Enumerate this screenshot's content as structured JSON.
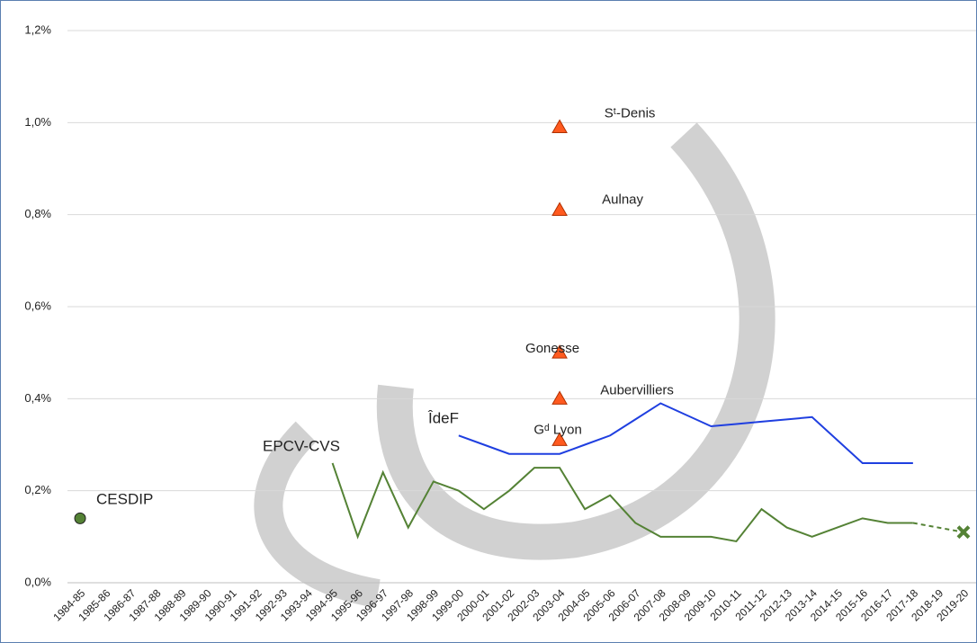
{
  "chart_data": {
    "type": "line",
    "categories": [
      "1984-85",
      "1985-86",
      "1986-87",
      "1987-88",
      "1988-89",
      "1989-90",
      "1990-91",
      "1991-92",
      "1992-93",
      "1993-94",
      "1994-95",
      "1995-96",
      "1996-97",
      "1997-98",
      "1998-99",
      "1999-00",
      "2000-01",
      "2001-02",
      "2002-03",
      "2003-04",
      "2004-05",
      "2005-06",
      "2006-07",
      "2007-08",
      "2008-09",
      "2009-10",
      "2010-11",
      "2011-12",
      "2012-13",
      "2013-14",
      "2014-15",
      "2015-16",
      "2016-17",
      "2017-18",
      "2018-19",
      "2019-20"
    ],
    "ylim": [
      0,
      1.2
    ],
    "yticks": [
      {
        "value": 0,
        "label": "0,0%"
      },
      {
        "value": 0.2,
        "label": "0,2%"
      },
      {
        "value": 0.4,
        "label": "0,4%"
      },
      {
        "value": 0.6,
        "label": "0,6%"
      },
      {
        "value": 0.8,
        "label": "0,8%"
      },
      {
        "value": 1.0,
        "label": "1,0%"
      },
      {
        "value": 1.2,
        "label": "1,2%"
      }
    ],
    "grid": true,
    "series": [
      {
        "name": "CESDIP",
        "color": "#548235",
        "marker": "circle",
        "values": [
          0.14,
          null,
          null,
          null,
          null,
          null,
          null,
          null,
          null,
          null,
          null,
          null,
          null,
          null,
          null,
          null,
          null,
          null,
          null,
          null,
          null,
          null,
          null,
          null,
          null,
          null,
          null,
          null,
          null,
          null,
          null,
          null,
          null,
          null,
          null,
          null
        ]
      },
      {
        "name": "EPCV-CVS",
        "color": "#548235",
        "values": [
          null,
          null,
          null,
          null,
          null,
          null,
          null,
          null,
          null,
          null,
          0.26,
          0.1,
          0.24,
          0.12,
          0.22,
          0.2,
          0.16,
          0.2,
          0.25,
          0.25,
          0.16,
          0.19,
          0.13,
          0.1,
          0.1,
          0.1,
          0.09,
          0.16,
          0.12,
          0.1,
          0.12,
          0.14,
          0.13,
          0.13,
          null,
          null
        ]
      },
      {
        "color": "#548235",
        "dashed": true,
        "connect_gaps": true,
        "end_marker": "x",
        "values": [
          null,
          null,
          null,
          null,
          null,
          null,
          null,
          null,
          null,
          null,
          null,
          null,
          null,
          null,
          null,
          null,
          null,
          null,
          null,
          null,
          null,
          null,
          null,
          null,
          null,
          null,
          null,
          null,
          null,
          null,
          null,
          null,
          null,
          0.13,
          null,
          0.11
        ]
      },
      {
        "name": "ÎdeF",
        "color": "#1f3fe0",
        "values": [
          null,
          null,
          null,
          null,
          null,
          null,
          null,
          null,
          null,
          null,
          null,
          null,
          null,
          null,
          null,
          0.32,
          0.3,
          0.28,
          0.28,
          0.28,
          0.3,
          0.32,
          0.355,
          0.39,
          0.365,
          0.34,
          0.345,
          0.35,
          0.355,
          0.36,
          0.31,
          0.26,
          0.26,
          0.26,
          null,
          null
        ]
      }
    ],
    "points": [
      {
        "name": "Sᵗ-Denis",
        "category": "2003-04",
        "value": 0.99,
        "color": "#ff5a1f"
      },
      {
        "name": "Aulnay",
        "category": "2003-04",
        "value": 0.81,
        "color": "#ff5a1f"
      },
      {
        "name": "Gonesse",
        "category": "2003-04",
        "value": 0.5,
        "color": "#ff5a1f"
      },
      {
        "name": "Aubervilliers",
        "category": "2003-04",
        "value": 0.4,
        "color": "#ff5a1f"
      },
      {
        "name": "Gᵈ Lyon",
        "category": "2003-04",
        "value": 0.31,
        "color": "#ff5a1f"
      }
    ]
  }
}
